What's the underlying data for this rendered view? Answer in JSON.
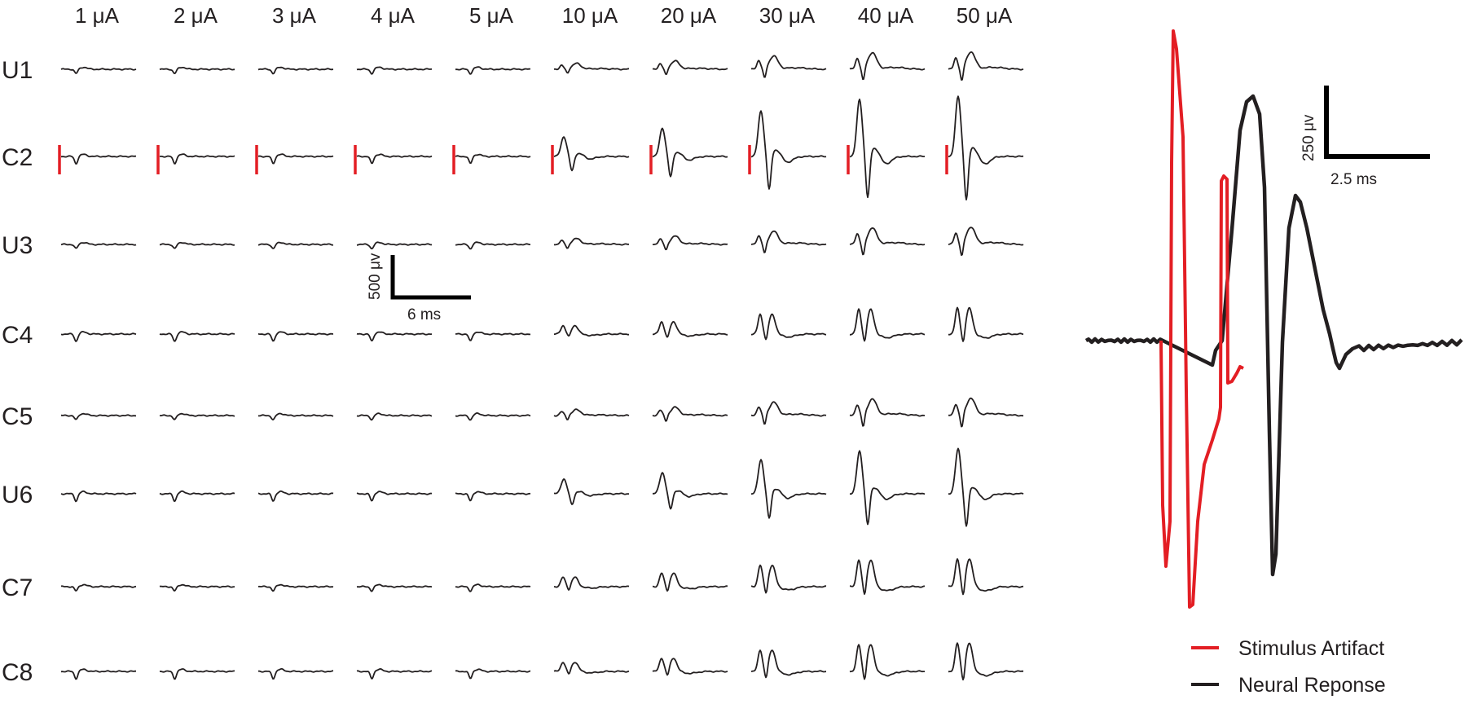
{
  "chart_data": [
    {
      "type": "line",
      "description_kind": "grid of evoked response traces",
      "columns": [
        "1 μA",
        "2 μA",
        "3 μA",
        "4 μA",
        "5 μA",
        "10 μA",
        "20 μA",
        "30 μA",
        "40 μA",
        "50 μA"
      ],
      "rows": [
        "U1",
        "C2",
        "U3",
        "C4",
        "C5",
        "U6",
        "C7",
        "C8"
      ],
      "stimulation_row": "C2",
      "amplitude_scale": [
        0.02,
        0.04,
        0.05,
        0.07,
        0.09,
        0.35,
        0.5,
        0.8,
        1.0,
        1.05
      ],
      "row_response": {
        "U1": {
          "shape": "late",
          "strength": 0.45
        },
        "C2": {
          "shape": "stim",
          "strength": 1.0
        },
        "U3": {
          "shape": "late",
          "strength": 0.45
        },
        "C4": {
          "shape": "double",
          "strength": 0.55
        },
        "C5": {
          "shape": "late",
          "strength": 0.45
        },
        "U6": {
          "shape": "stim",
          "strength": 0.75
        },
        "C7": {
          "shape": "double",
          "strength": 0.6
        },
        "C8": {
          "shape": "double",
          "strength": 0.6
        }
      },
      "scale_bar": {
        "voltage_label": "500 μv",
        "time_label": "6 ms"
      }
    },
    {
      "type": "line",
      "description_kind": "single enlarged trace",
      "series": [
        {
          "name": "Stimulus Artifact",
          "color": "#e31e24"
        },
        {
          "name": "Neural Reponse",
          "color": "#231f20"
        }
      ],
      "scale_bar": {
        "voltage_label": "250 μv",
        "time_label": "2.5 ms"
      }
    }
  ],
  "colors": {
    "artifact": "#e31e24",
    "trace": "#231f20"
  }
}
